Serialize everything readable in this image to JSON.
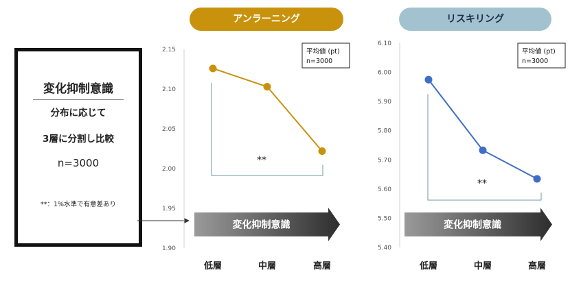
{
  "left_panel": {
    "title": "変化抑制意識",
    "line1": "分布に応じて",
    "line2": "3層に分割し比較",
    "n": "n=3000",
    "note": "**：1%水準で有意差あり"
  },
  "chart_data": [
    {
      "type": "line",
      "title": "アンラーニング",
      "categories": [
        "低層",
        "中層",
        "高層"
      ],
      "values": [
        2.126,
        2.103,
        2.022
      ],
      "ylim": [
        1.9,
        2.15
      ],
      "yticks": [
        "1.90",
        "1.95",
        "2.00",
        "2.05",
        "2.10",
        "2.15"
      ],
      "grid": false,
      "legend": {
        "line1": "平均値 (pt)",
        "line2": "n=3000"
      },
      "significance": "**",
      "arrow_label": "変化抑制意識",
      "color": "#c8920c"
    },
    {
      "type": "line",
      "title": "リスキリング",
      "categories": [
        "低層",
        "中層",
        "高層"
      ],
      "values": [
        5.975,
        5.733,
        5.635
      ],
      "ylim": [
        5.4,
        6.1
      ],
      "yticks": [
        "5.40",
        "5.50",
        "5.60",
        "5.70",
        "5.80",
        "5.90",
        "6.00",
        "6.10"
      ],
      "grid": false,
      "legend": {
        "line1": "平均値 (pt)",
        "line2": "n=3000"
      },
      "significance": "**",
      "arrow_label": "変化抑制意識",
      "color": "#3f6fc4"
    }
  ],
  "colors": {
    "accent_gold": "#c8920c",
    "accent_blue": "#3f6fc4",
    "pill_blue_bg": "#a3c2cf",
    "bracket": "#6f9a9a",
    "arrow_dark": "#2e2e2e",
    "arrow_light": "#9a9a9a"
  }
}
